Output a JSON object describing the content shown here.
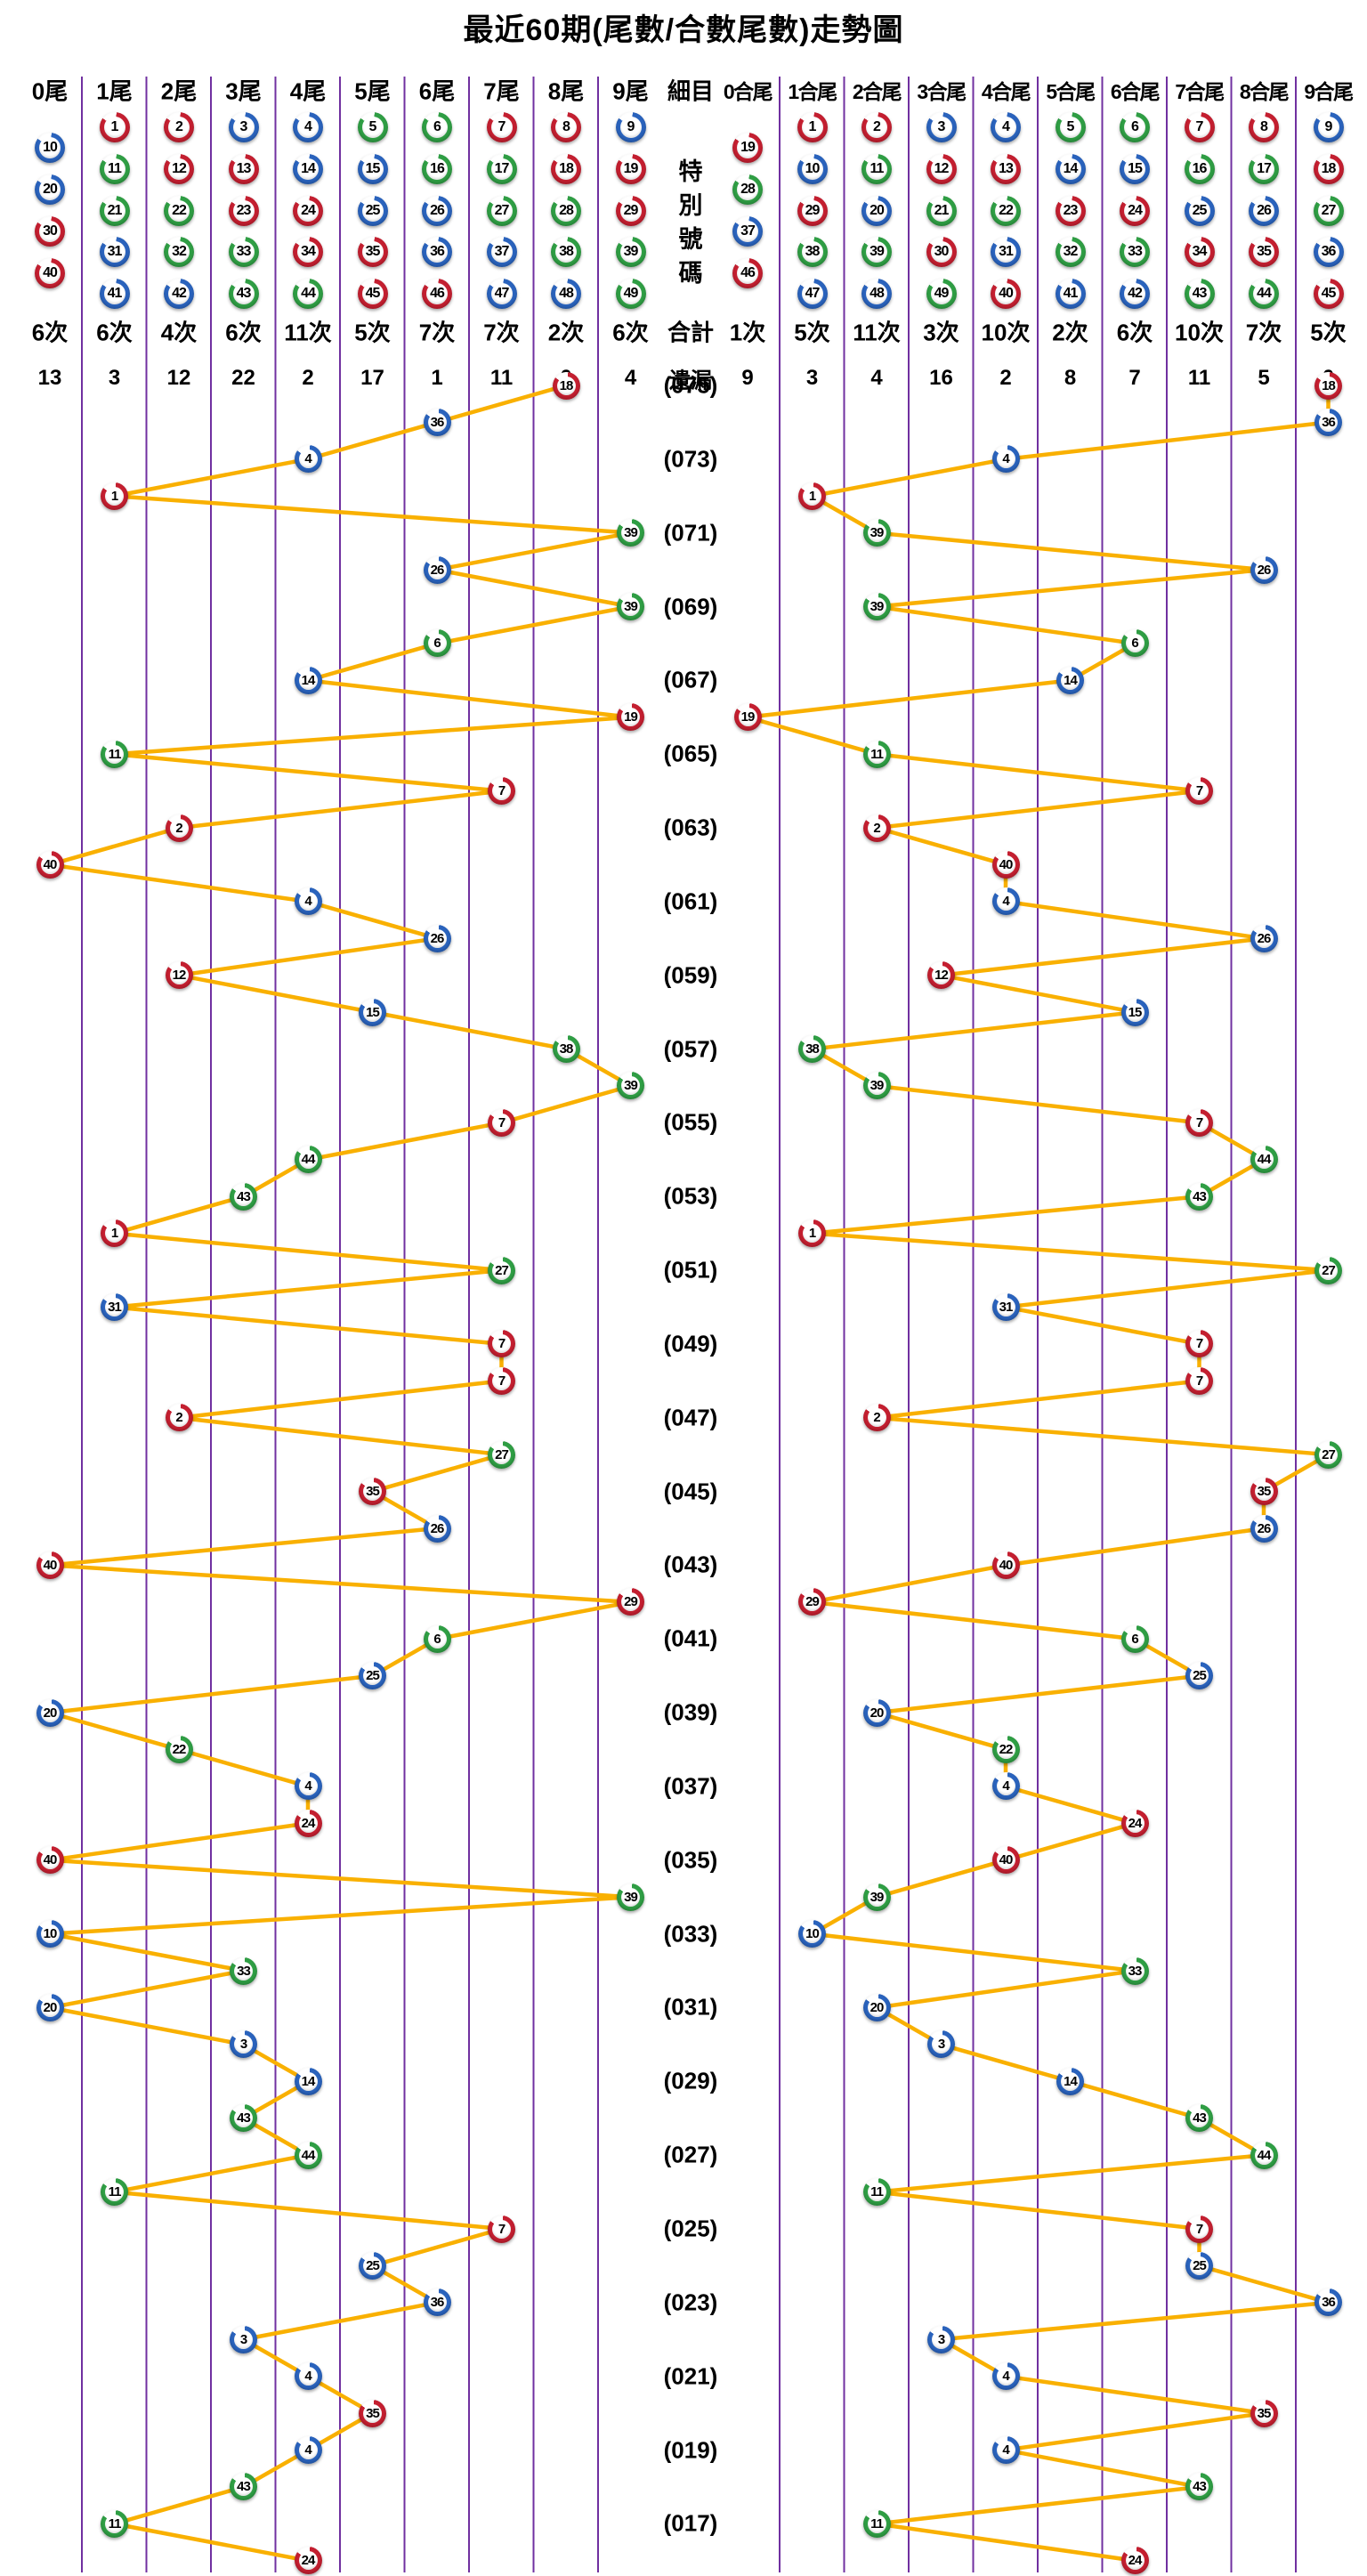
{
  "title": "最近60期(尾數/合數尾數)走勢圖",
  "colors": {
    "red_ball": "#c41f30",
    "blue_ball": "#2a63bd",
    "green_ball": "#2f9e44",
    "trend_line": "#f9b000",
    "grid_line": "#7030a0",
    "text": "#000000",
    "background": "#ffffff"
  },
  "ball_colors": {
    "red": [
      1,
      2,
      7,
      8,
      12,
      13,
      18,
      19,
      23,
      24,
      29,
      30,
      34,
      35,
      40,
      45,
      46
    ],
    "blue": [
      3,
      4,
      9,
      10,
      14,
      15,
      20,
      25,
      26,
      31,
      36,
      37,
      41,
      42,
      47,
      48
    ],
    "green": [
      5,
      6,
      11,
      16,
      17,
      21,
      22,
      27,
      28,
      32,
      33,
      38,
      39,
      43,
      44,
      49
    ]
  },
  "middle": {
    "header": "細目",
    "special_label": "特別號碼",
    "total_label": "合計",
    "miss_label": "遺漏"
  },
  "left_section": {
    "columns": [
      {
        "label": "0尾",
        "balls": [
          10,
          20,
          30,
          40
        ],
        "count": "6次",
        "miss": "13"
      },
      {
        "label": "1尾",
        "balls": [
          1,
          11,
          21,
          31,
          41
        ],
        "count": "6次",
        "miss": "3"
      },
      {
        "label": "2尾",
        "balls": [
          2,
          12,
          22,
          32,
          42
        ],
        "count": "4次",
        "miss": "12"
      },
      {
        "label": "3尾",
        "balls": [
          3,
          13,
          23,
          33,
          43
        ],
        "count": "6次",
        "miss": "22"
      },
      {
        "label": "4尾",
        "balls": [
          4,
          14,
          24,
          34,
          44
        ],
        "count": "11次",
        "miss": "2"
      },
      {
        "label": "5尾",
        "balls": [
          5,
          15,
          25,
          35,
          45
        ],
        "count": "5次",
        "miss": "17"
      },
      {
        "label": "6尾",
        "balls": [
          6,
          16,
          26,
          36,
          46
        ],
        "count": "7次",
        "miss": "1"
      },
      {
        "label": "7尾",
        "balls": [
          7,
          17,
          27,
          37,
          47
        ],
        "count": "7次",
        "miss": "11"
      },
      {
        "label": "8尾",
        "balls": [
          8,
          18,
          28,
          38,
          48
        ],
        "count": "2次",
        "miss": "0"
      },
      {
        "label": "9尾",
        "balls": [
          9,
          19,
          29,
          39,
          49
        ],
        "count": "6次",
        "miss": "4"
      }
    ]
  },
  "right_section": {
    "columns": [
      {
        "label": "0合尾",
        "balls": [
          19,
          28,
          37,
          46
        ],
        "count": "1次",
        "miss": "9"
      },
      {
        "label": "1合尾",
        "balls": [
          1,
          10,
          29,
          38,
          47
        ],
        "count": "5次",
        "miss": "3"
      },
      {
        "label": "2合尾",
        "balls": [
          2,
          11,
          20,
          39,
          48
        ],
        "count": "11次",
        "miss": "4"
      },
      {
        "label": "3合尾",
        "balls": [
          3,
          12,
          21,
          30,
          49
        ],
        "count": "3次",
        "miss": "16"
      },
      {
        "label": "4合尾",
        "balls": [
          4,
          13,
          22,
          31,
          40
        ],
        "count": "10次",
        "miss": "2"
      },
      {
        "label": "5合尾",
        "balls": [
          5,
          14,
          23,
          32,
          41
        ],
        "count": "2次",
        "miss": "8"
      },
      {
        "label": "6合尾",
        "balls": [
          6,
          15,
          24,
          33,
          42
        ],
        "count": "6次",
        "miss": "7"
      },
      {
        "label": "7合尾",
        "balls": [
          7,
          16,
          25,
          34,
          43
        ],
        "count": "10次",
        "miss": "11"
      },
      {
        "label": "8合尾",
        "balls": [
          8,
          17,
          26,
          35,
          44
        ],
        "count": "7次",
        "miss": "5"
      },
      {
        "label": "9合尾",
        "balls": [
          9,
          18,
          27,
          36,
          45
        ],
        "count": "5次",
        "miss": "0"
      }
    ]
  },
  "chart_data": {
    "type": "scatter",
    "title": "最近60期(尾數/合數尾數)走勢圖",
    "description": "60 draws, newest at top. Each row plots the special number twice: left panel column = last digit of number (0尾-9尾), right panel column = last digit of the digit-sum (0合尾-9合尾). Consecutive points are joined by orange lines; purple vertical gridlines separate columns. Period labels shown on every second row.",
    "left_categories": [
      "0尾",
      "1尾",
      "2尾",
      "3尾",
      "4尾",
      "5尾",
      "6尾",
      "7尾",
      "8尾",
      "9尾"
    ],
    "right_categories": [
      "0合尾",
      "1合尾",
      "2合尾",
      "3合尾",
      "4合尾",
      "5合尾",
      "6合尾",
      "7合尾",
      "8合尾",
      "9合尾"
    ],
    "legend_position": "none",
    "grid": true,
    "rows": [
      {
        "period": "(075)",
        "number": 18
      },
      {
        "period": "",
        "number": 36
      },
      {
        "period": "(073)",
        "number": 4
      },
      {
        "period": "",
        "number": 1
      },
      {
        "period": "(071)",
        "number": 39
      },
      {
        "period": "",
        "number": 26
      },
      {
        "period": "(069)",
        "number": 39
      },
      {
        "period": "",
        "number": 6
      },
      {
        "period": "(067)",
        "number": 14
      },
      {
        "period": "",
        "number": 19
      },
      {
        "period": "(065)",
        "number": 11
      },
      {
        "period": "",
        "number": 7
      },
      {
        "period": "(063)",
        "number": 2
      },
      {
        "period": "",
        "number": 40
      },
      {
        "period": "(061)",
        "number": 4
      },
      {
        "period": "",
        "number": 26
      },
      {
        "period": "(059)",
        "number": 12
      },
      {
        "period": "",
        "number": 15
      },
      {
        "period": "(057)",
        "number": 38
      },
      {
        "period": "",
        "number": 39
      },
      {
        "period": "(055)",
        "number": 7
      },
      {
        "period": "",
        "number": 44
      },
      {
        "period": "(053)",
        "number": 43
      },
      {
        "period": "",
        "number": 1
      },
      {
        "period": "(051)",
        "number": 27
      },
      {
        "period": "",
        "number": 31
      },
      {
        "period": "(049)",
        "number": 7
      },
      {
        "period": "",
        "number": 7
      },
      {
        "period": "(047)",
        "number": 2
      },
      {
        "period": "",
        "number": 27
      },
      {
        "period": "(045)",
        "number": 35
      },
      {
        "period": "",
        "number": 26
      },
      {
        "period": "(043)",
        "number": 40
      },
      {
        "period": "",
        "number": 29
      },
      {
        "period": "(041)",
        "number": 6
      },
      {
        "period": "",
        "number": 25
      },
      {
        "period": "(039)",
        "number": 20
      },
      {
        "period": "",
        "number": 22
      },
      {
        "period": "(037)",
        "number": 4
      },
      {
        "period": "",
        "number": 24
      },
      {
        "period": "(035)",
        "number": 40
      },
      {
        "period": "",
        "number": 39
      },
      {
        "period": "(033)",
        "number": 10
      },
      {
        "period": "",
        "number": 33
      },
      {
        "period": "(031)",
        "number": 20
      },
      {
        "period": "",
        "number": 3
      },
      {
        "period": "(029)",
        "number": 14
      },
      {
        "period": "",
        "number": 43
      },
      {
        "period": "(027)",
        "number": 44
      },
      {
        "period": "",
        "number": 11
      },
      {
        "period": "(025)",
        "number": 7
      },
      {
        "period": "",
        "number": 25
      },
      {
        "period": "(023)",
        "number": 36
      },
      {
        "period": "",
        "number": 3
      },
      {
        "period": "(021)",
        "number": 4
      },
      {
        "period": "",
        "number": 35
      },
      {
        "period": "(019)",
        "number": 4
      },
      {
        "period": "",
        "number": 43
      },
      {
        "period": "(017)",
        "number": 11
      },
      {
        "period": "",
        "number": 24
      }
    ]
  }
}
